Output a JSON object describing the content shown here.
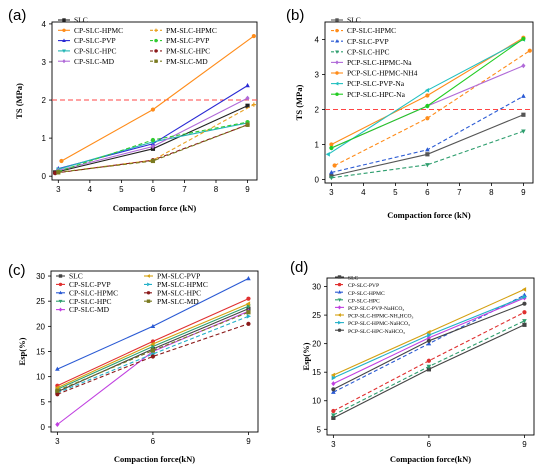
{
  "chart_data": [
    {
      "panel": "(a)",
      "type": "line",
      "xlabel": "Compaction force (kN)",
      "ylabel": "TS (MPa)",
      "xlim": [
        2.8,
        9.3
      ],
      "ylim": [
        -0.1,
        4.05
      ],
      "xticks": [
        3,
        4,
        5,
        6,
        7,
        8,
        9
      ],
      "yticks": [
        0,
        1,
        2,
        3,
        4
      ],
      "reference_line": {
        "y": 2.0,
        "color": "#ff4444",
        "style": "dashed"
      },
      "legend_columns": 2,
      "series": [
        {
          "name": "SLC",
          "color": "#222222",
          "dash": "solid",
          "marker": "square",
          "x": [
            2.9,
            6.0,
            9.0
          ],
          "y": [
            0.1,
            0.72,
            1.85
          ]
        },
        {
          "name": "CP-SLC-HPMC",
          "color": "#ff8c1a",
          "dash": "solid",
          "marker": "circle",
          "x": [
            3.1,
            6.0,
            9.2
          ],
          "y": [
            0.4,
            1.75,
            3.68
          ]
        },
        {
          "name": "CP-SLC-PVP",
          "color": "#2a2ad4",
          "dash": "solid",
          "marker": "triangle",
          "x": [
            3.0,
            6.0,
            9.0
          ],
          "y": [
            0.2,
            0.85,
            2.38
          ]
        },
        {
          "name": "CP-SLC-HPC",
          "color": "#22b5b5",
          "dash": "solid",
          "marker": "triangle-down",
          "x": [
            3.0,
            6.0,
            9.0
          ],
          "y": [
            0.18,
            0.9,
            1.4
          ]
        },
        {
          "name": "CP-SLC-MD",
          "color": "#b06ad8",
          "dash": "solid",
          "marker": "diamond",
          "x": [
            3.0,
            6.0,
            9.0
          ],
          "y": [
            0.15,
            0.78,
            2.05
          ]
        },
        {
          "name": "PM-SLC-HPMC",
          "color": "#e8a020",
          "dash": "dashed",
          "marker": "plus",
          "x": [
            3.0,
            6.0,
            9.2
          ],
          "y": [
            0.1,
            0.42,
            1.88
          ]
        },
        {
          "name": "PM-SLC-PVP",
          "color": "#33cc33",
          "dash": "dashed",
          "marker": "circle",
          "x": [
            3.0,
            6.0,
            9.0
          ],
          "y": [
            0.12,
            0.95,
            1.42
          ]
        },
        {
          "name": "PM-SLC-HPC",
          "color": "#8b1a1a",
          "dash": "dashed",
          "marker": "circle",
          "x": [
            2.9,
            6.0,
            9.0
          ],
          "y": [
            0.08,
            0.42,
            1.35
          ]
        },
        {
          "name": "PM-SLC-MD",
          "color": "#7a7a20",
          "dash": "dashed",
          "marker": "square",
          "x": [
            3.0,
            6.0,
            9.0
          ],
          "y": [
            0.1,
            0.4,
            1.35
          ]
        }
      ]
    },
    {
      "panel": "(b)",
      "type": "line",
      "xlabel": "Compaction force (kN)",
      "ylabel": "TS (MPa)",
      "xlim": [
        2.8,
        9.3
      ],
      "ylim": [
        -0.1,
        4.5
      ],
      "xticks": [
        3,
        4,
        5,
        6,
        7,
        8,
        9
      ],
      "yticks": [
        0,
        1,
        2,
        3,
        4
      ],
      "reference_line": {
        "y": 2.0,
        "color": "#ff4444",
        "style": "dashed"
      },
      "legend_columns": 1,
      "series": [
        {
          "name": "SLC",
          "color": "#555555",
          "dash": "solid",
          "marker": "square",
          "x": [
            3.0,
            6.0,
            9.0
          ],
          "y": [
            0.1,
            0.72,
            1.85
          ]
        },
        {
          "name": "CP-SLC-HPMC",
          "color": "#ff8c1a",
          "dash": "dashed",
          "marker": "circle",
          "x": [
            3.1,
            6.0,
            9.2
          ],
          "y": [
            0.4,
            1.75,
            3.68
          ]
        },
        {
          "name": "CP-SLC-PVP",
          "color": "#2a5ad4",
          "dash": "dashed",
          "marker": "triangle",
          "x": [
            3.0,
            6.0,
            9.0
          ],
          "y": [
            0.2,
            0.85,
            2.38
          ]
        },
        {
          "name": "CP-SLC-HPC",
          "color": "#2e9e6e",
          "dash": "dashed",
          "marker": "triangle-down",
          "x": [
            3.0,
            6.0,
            9.0
          ],
          "y": [
            0.05,
            0.42,
            1.38
          ]
        },
        {
          "name": "PCP-SLC-HPMC-Na",
          "color": "#b06ad8",
          "dash": "solid",
          "marker": "diamond",
          "x": [
            3.0,
            6.0,
            9.0
          ],
          "y": [
            0.9,
            2.1,
            3.25
          ]
        },
        {
          "name": "PCP-SLC-HPMC-NH4",
          "color": "#ff8c1a",
          "dash": "solid",
          "marker": "circle",
          "x": [
            3.0,
            6.0,
            9.0
          ],
          "y": [
            1.0,
            2.4,
            4.05
          ]
        },
        {
          "name": "PCP-SLC-PVP-Na",
          "color": "#22c0c0",
          "dash": "solid",
          "marker": "triangle-left",
          "x": [
            2.9,
            6.0,
            9.0
          ],
          "y": [
            0.72,
            2.55,
            4.0
          ]
        },
        {
          "name": "PCP-SLC-HPC-Na",
          "color": "#22cc22",
          "dash": "solid",
          "marker": "circle",
          "x": [
            3.0,
            6.0,
            9.0
          ],
          "y": [
            0.9,
            2.1,
            4.02
          ]
        }
      ]
    },
    {
      "panel": "(c)",
      "type": "line",
      "xlabel": "Compaction force(kN)",
      "ylabel": "Esp(%)",
      "xlim": [
        2.8,
        9.3
      ],
      "ylim": [
        -1,
        31
      ],
      "xticks": [
        3,
        6,
        9
      ],
      "yticks": [
        0,
        5,
        10,
        15,
        20,
        25,
        30
      ],
      "legend_columns": 2,
      "series": [
        {
          "name": "SLC",
          "color": "#444444",
          "dash": "solid",
          "marker": "square",
          "x": [
            3,
            6,
            9
          ],
          "y": [
            7.0,
            15.5,
            23.5
          ]
        },
        {
          "name": "CP-SLC-PVP",
          "color": "#e03030",
          "dash": "solid",
          "marker": "circle",
          "x": [
            3,
            6,
            9
          ],
          "y": [
            8.2,
            17.0,
            25.5
          ]
        },
        {
          "name": "CP-SLC-HPMC",
          "color": "#2a5ad4",
          "dash": "solid",
          "marker": "triangle",
          "x": [
            3,
            6,
            9
          ],
          "y": [
            11.5,
            20.0,
            29.5
          ]
        },
        {
          "name": "CP-SLC-HPC",
          "color": "#2e9e6e",
          "dash": "solid",
          "marker": "triangle-down",
          "x": [
            3,
            6,
            9
          ],
          "y": [
            7.5,
            16.0,
            24.0
          ]
        },
        {
          "name": "CP-SLC-MD",
          "color": "#c040e0",
          "dash": "solid",
          "marker": "diamond",
          "x": [
            3,
            6,
            9
          ],
          "y": [
            0.5,
            15.0,
            23.0
          ]
        },
        {
          "name": "PM-SLC-PVP",
          "color": "#d4a010",
          "dash": "solid",
          "marker": "triangle-left",
          "x": [
            3,
            6,
            9
          ],
          "y": [
            7.8,
            16.5,
            24.5
          ]
        },
        {
          "name": "PM-SLC-HPMC",
          "color": "#22b0c8",
          "dash": "dashed",
          "marker": "triangle-right",
          "x": [
            3,
            6,
            9
          ],
          "y": [
            6.8,
            14.5,
            22.0
          ]
        },
        {
          "name": "PM-SLC-HPC",
          "color": "#8b1a1a",
          "dash": "dashed",
          "marker": "circle",
          "x": [
            3,
            6,
            9
          ],
          "y": [
            6.5,
            14.0,
            20.5
          ]
        },
        {
          "name": "PM-SLC-MD",
          "color": "#7a7a20",
          "dash": "dashed",
          "marker": "square",
          "x": [
            3,
            6,
            9
          ],
          "y": [
            7.2,
            15.2,
            22.8
          ]
        }
      ]
    },
    {
      "panel": "(d)",
      "type": "line",
      "xlabel": "Compaction force(kN)",
      "ylabel": "Esp(%)",
      "xlim": [
        2.8,
        9.3
      ],
      "ylim": [
        4,
        31.5
      ],
      "xticks": [
        3,
        6,
        9
      ],
      "yticks": [
        5,
        10,
        15,
        20,
        25,
        30
      ],
      "legend_columns": 1,
      "series": [
        {
          "name": "SLC",
          "color": "#444444",
          "dash": "solid",
          "marker": "square",
          "x": [
            3,
            6,
            9
          ],
          "y": [
            7.0,
            15.5,
            23.3
          ]
        },
        {
          "name": "CP-SLC-PVP",
          "color": "#e03030",
          "dash": "dashed",
          "marker": "circle",
          "x": [
            3,
            6,
            9
          ],
          "y": [
            8.2,
            17.0,
            25.5
          ]
        },
        {
          "name": "CP-SLC-HPMC",
          "color": "#2a5ad4",
          "dash": "dashed",
          "marker": "triangle",
          "x": [
            3,
            6,
            9
          ],
          "y": [
            11.5,
            20.0,
            28.5
          ]
        },
        {
          "name": "CP-SLC-HPC",
          "color": "#2e9e6e",
          "dash": "dashed",
          "marker": "triangle-down",
          "x": [
            3,
            6,
            9
          ],
          "y": [
            7.5,
            16.0,
            24.0
          ]
        },
        {
          "name": "PCP-SLC-PVP-NaHCO₃",
          "color": "#c040e0",
          "dash": "solid",
          "marker": "diamond",
          "x": [
            3,
            6,
            9
          ],
          "y": [
            13.0,
            21.0,
            28.0
          ]
        },
        {
          "name": "PCP-SLC-HPMC-NH₄HCO₃",
          "color": "#d4a010",
          "dash": "solid",
          "marker": "triangle-left",
          "x": [
            3,
            6,
            9
          ],
          "y": [
            14.5,
            22.0,
            29.5
          ]
        },
        {
          "name": "PCP-SLC-HPMC-NaHCO₃",
          "color": "#22b0c8",
          "dash": "solid",
          "marker": "triangle-right",
          "x": [
            3,
            6,
            9
          ],
          "y": [
            14.0,
            21.5,
            28.2
          ]
        },
        {
          "name": "PCP-SLC-HPC-NaHCO₃",
          "color": "#444444",
          "dash": "solid",
          "marker": "circle",
          "x": [
            3,
            6,
            9
          ],
          "y": [
            12.0,
            20.5,
            27.0
          ]
        }
      ]
    }
  ]
}
